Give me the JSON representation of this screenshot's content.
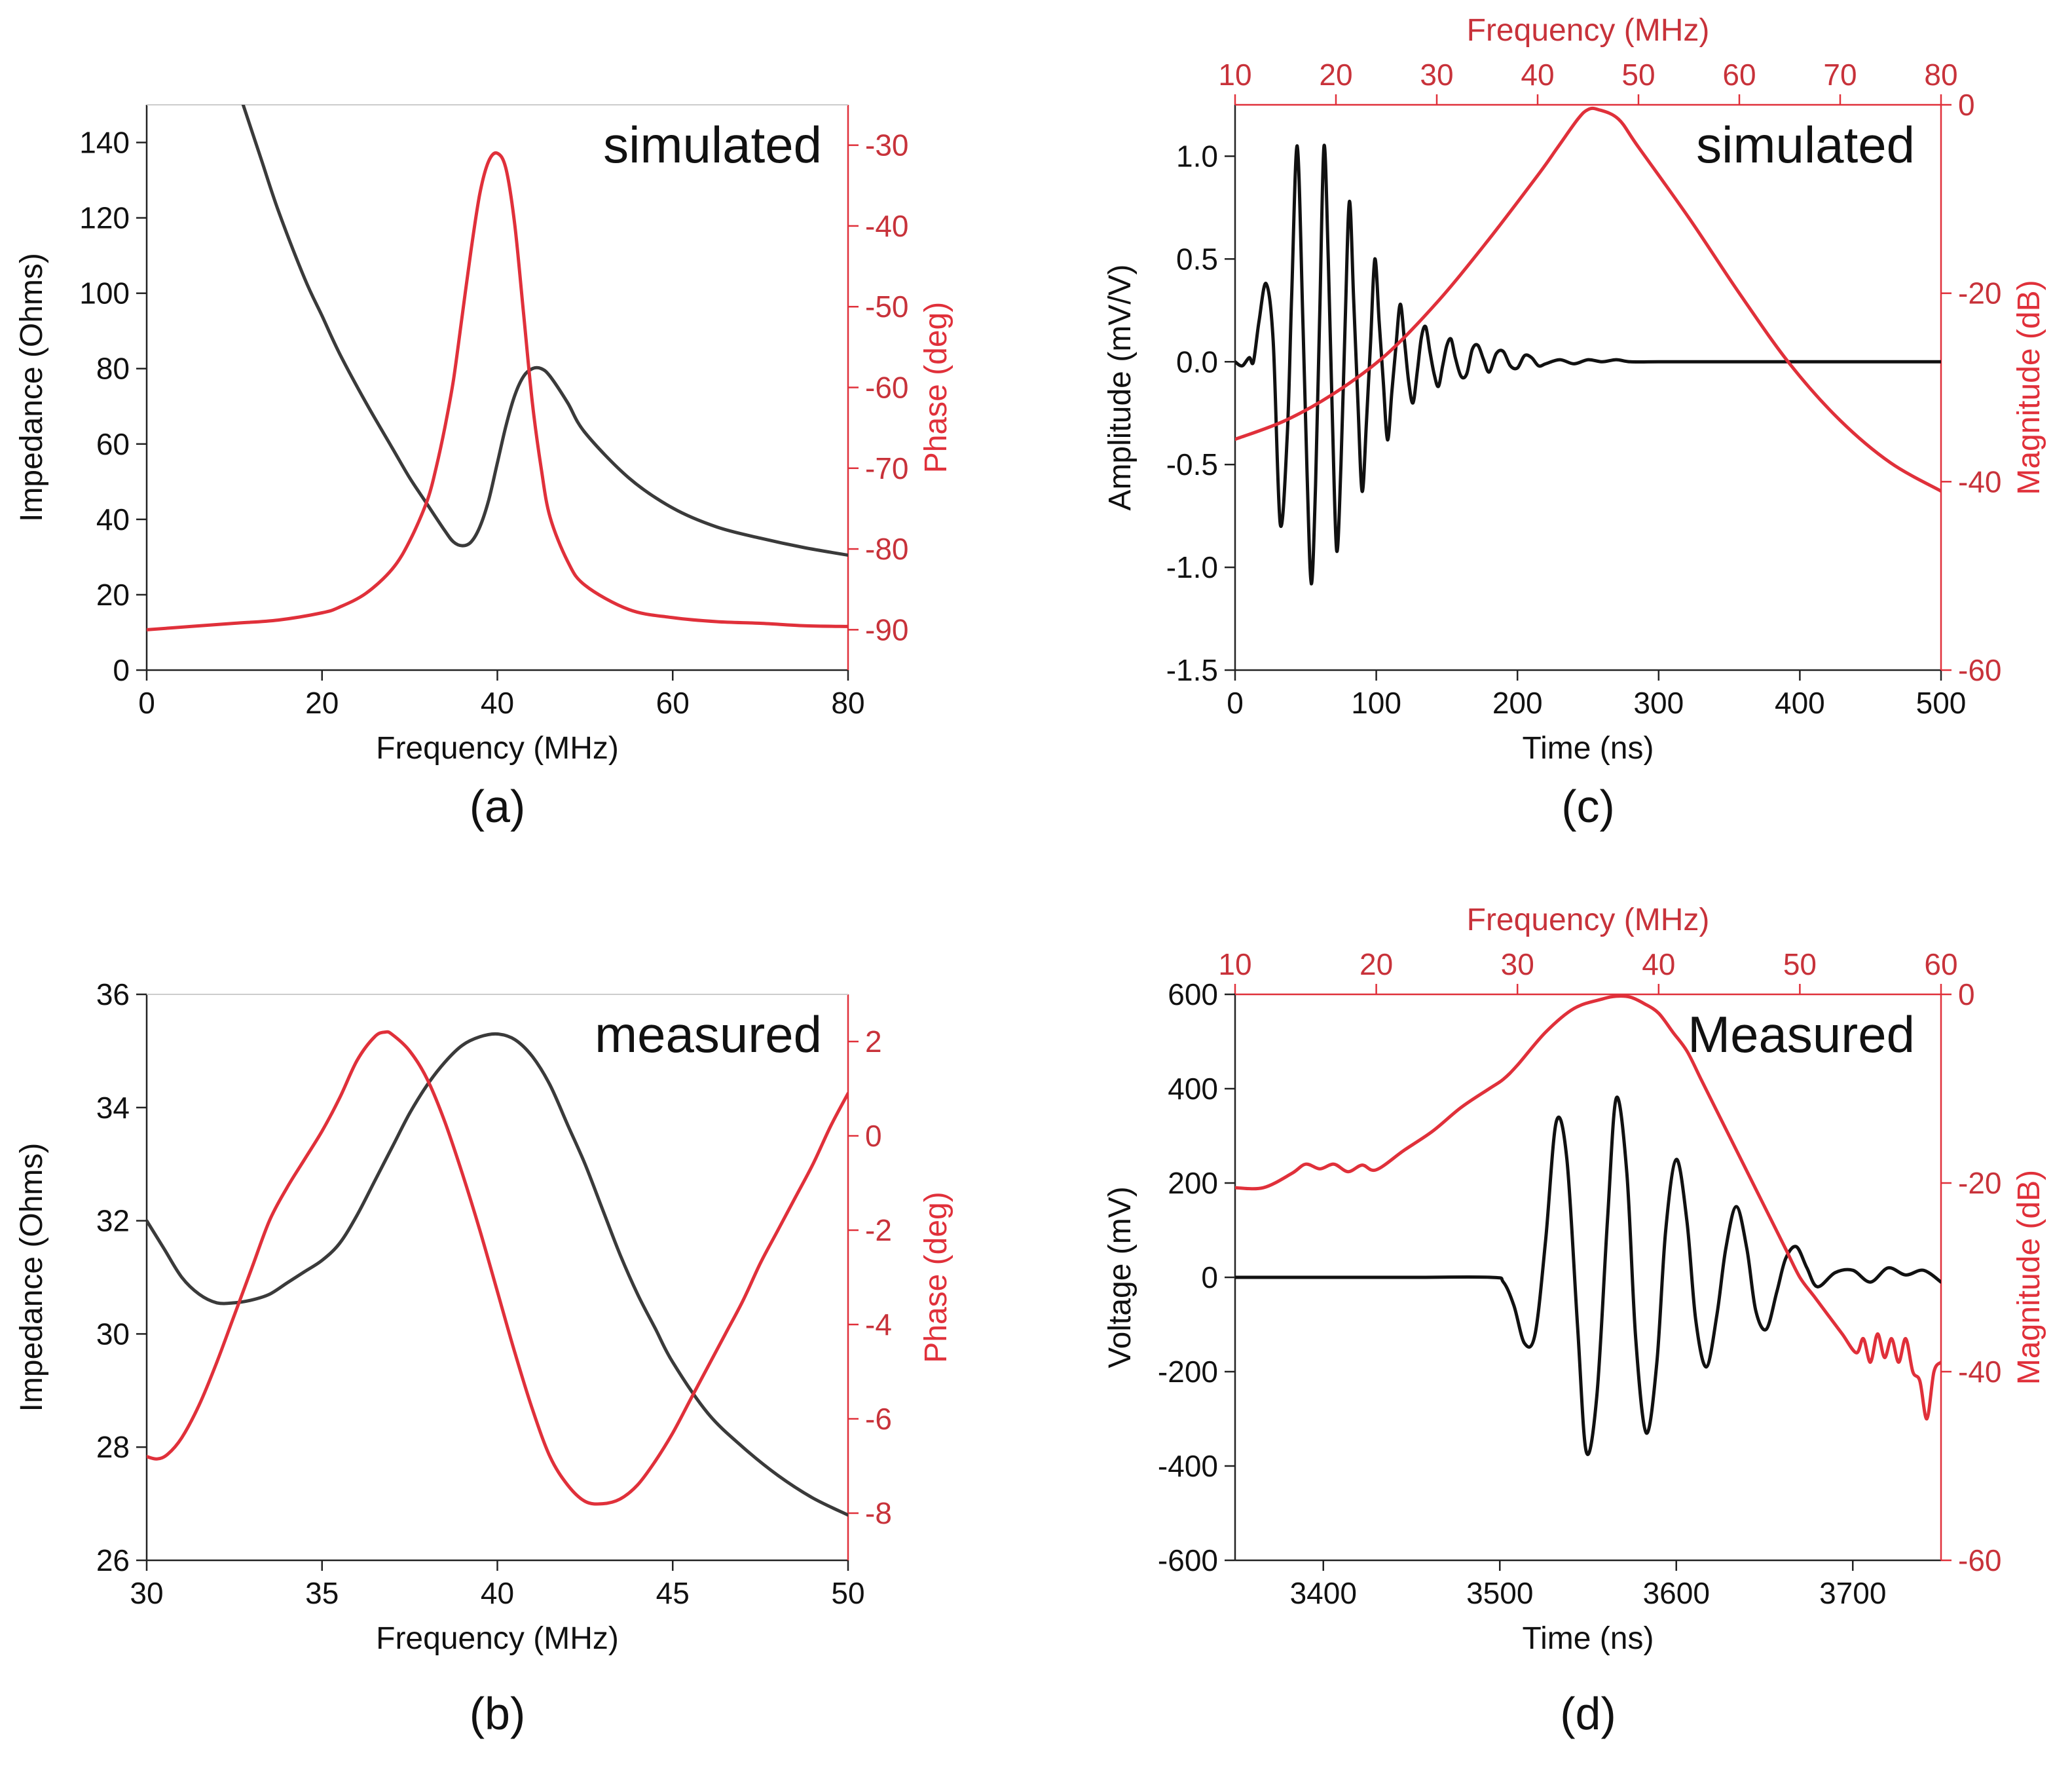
{
  "colors": {
    "black": "#3a3a3a",
    "black_strong": "#111111",
    "red": "#e0303a",
    "red_text": "#c8323a",
    "axis": "#222222"
  },
  "chart_data": [
    {
      "id": "a",
      "type": "line",
      "panel_label": "(a)",
      "annotation": "simulated",
      "xlabel": "Frequency (MHz)",
      "ylabel_left": "Impedance (Ohms)",
      "ylabel_right": "Phase (deg)",
      "xlim": [
        0,
        80
      ],
      "ylim_left": [
        0,
        150
      ],
      "ylim_right": [
        -95,
        -25
      ],
      "xticks": [
        0,
        20,
        40,
        60,
        80
      ],
      "xtick_labels": [
        "0",
        "20",
        "40",
        "60",
        "80"
      ],
      "yticks_left": [
        0,
        20,
        40,
        60,
        80,
        100,
        120,
        140
      ],
      "ytick_labels_left": [
        "0",
        "20",
        "40",
        "60",
        "80",
        "100",
        "120",
        "140"
      ],
      "yticks_right": [
        -90,
        -80,
        -70,
        -60,
        -50,
        -40,
        -30
      ],
      "ytick_labels_right": [
        "-90",
        "-80",
        "-70",
        "-60",
        "-50",
        "-40",
        "-30"
      ],
      "series": [
        {
          "name": "Impedance",
          "axis": "left",
          "color": "black",
          "x": [
            11,
            13,
            15,
            18,
            20,
            22,
            25,
            28,
            30,
            32,
            34,
            35,
            36,
            37,
            38,
            39,
            40,
            41,
            42,
            43,
            44,
            45,
            46,
            48,
            50,
            55,
            60,
            65,
            70,
            75,
            80
          ],
          "y": [
            150,
            136,
            122,
            104,
            94,
            84,
            71,
            59,
            51,
            44,
            37,
            34,
            33,
            34,
            38,
            45,
            55,
            65,
            73,
            78,
            80,
            80,
            78,
            71,
            63,
            51,
            43,
            38,
            35,
            32.5,
            30.5
          ]
        },
        {
          "name": "Phase",
          "axis": "right",
          "color": "red",
          "x": [
            0,
            5,
            10,
            15,
            20,
            22,
            25,
            28,
            30,
            32,
            33,
            34,
            35,
            36,
            37,
            38,
            39,
            40,
            41,
            42,
            43,
            44,
            45,
            46,
            48,
            50,
            55,
            60,
            65,
            70,
            75,
            80
          ],
          "y": [
            -90,
            -89.6,
            -89.2,
            -88.8,
            -87.9,
            -87.2,
            -85.5,
            -82.5,
            -79,
            -74,
            -70,
            -65,
            -59,
            -51,
            -43,
            -36,
            -32,
            -31,
            -33,
            -40,
            -51,
            -62,
            -70,
            -76,
            -81.5,
            -84.5,
            -87.5,
            -88.5,
            -89,
            -89.2,
            -89.5,
            -89.6
          ]
        }
      ]
    },
    {
      "id": "b",
      "type": "line",
      "panel_label": "(b)",
      "annotation": "measured",
      "xlabel": "Frequency (MHz)",
      "ylabel_left": "Impedance (Ohms)",
      "ylabel_right": "Phase (deg)",
      "xlim": [
        30,
        50
      ],
      "ylim_left": [
        26,
        36
      ],
      "ylim_right": [
        -9,
        3
      ],
      "xticks": [
        30,
        35,
        40,
        45,
        50
      ],
      "xtick_labels": [
        "30",
        "35",
        "40",
        "45",
        "50"
      ],
      "yticks_left": [
        26,
        28,
        30,
        32,
        34,
        36
      ],
      "ytick_labels_left": [
        "26",
        "28",
        "30",
        "32",
        "34",
        "36"
      ],
      "yticks_right": [
        -8,
        -6,
        -4,
        -2,
        0,
        2
      ],
      "ytick_labels_right": [
        "-8",
        "-6",
        "-4",
        "-2",
        "0",
        "2"
      ],
      "series": [
        {
          "name": "Impedance",
          "axis": "left",
          "color": "black",
          "x": [
            30,
            30.5,
            31,
            31.5,
            32,
            32.5,
            33,
            33.5,
            34,
            34.5,
            35,
            35.5,
            36,
            36.5,
            37,
            37.5,
            38,
            38.5,
            39,
            39.5,
            40,
            40.5,
            41,
            41.5,
            42,
            42.5,
            43,
            43.5,
            44,
            44.5,
            45,
            46,
            47,
            48,
            49,
            50
          ],
          "y": [
            32,
            31.5,
            31,
            30.7,
            30.55,
            30.55,
            30.6,
            30.7,
            30.9,
            31.1,
            31.3,
            31.6,
            32.1,
            32.7,
            33.3,
            33.9,
            34.4,
            34.8,
            35.1,
            35.25,
            35.3,
            35.2,
            34.9,
            34.4,
            33.7,
            33.0,
            32.2,
            31.4,
            30.7,
            30.1,
            29.5,
            28.6,
            28.0,
            27.5,
            27.1,
            26.8
          ]
        },
        {
          "name": "Phase",
          "axis": "right",
          "color": "red",
          "x": [
            30,
            30.3,
            30.6,
            31,
            31.5,
            32,
            32.5,
            33,
            33.5,
            34,
            34.5,
            35,
            35.5,
            36,
            36.5,
            36.8,
            37,
            37.5,
            38,
            38.5,
            39,
            39.5,
            40,
            40.5,
            41,
            41.5,
            42,
            42.5,
            43,
            43.5,
            44,
            44.5,
            45,
            45.5,
            46,
            46.5,
            47,
            47.5,
            48,
            48.5,
            49,
            49.5,
            50
          ],
          "y": [
            -6.8,
            -6.85,
            -6.75,
            -6.4,
            -5.7,
            -4.8,
            -3.8,
            -2.8,
            -1.8,
            -1.1,
            -0.5,
            0.1,
            0.8,
            1.6,
            2.1,
            2.2,
            2.15,
            1.8,
            1.2,
            0.3,
            -0.8,
            -2.0,
            -3.3,
            -4.6,
            -5.8,
            -6.8,
            -7.4,
            -7.75,
            -7.8,
            -7.7,
            -7.4,
            -6.9,
            -6.3,
            -5.6,
            -4.9,
            -4.2,
            -3.5,
            -2.7,
            -2.0,
            -1.3,
            -0.6,
            0.2,
            0.9
          ]
        }
      ]
    },
    {
      "id": "c",
      "type": "line",
      "panel_label": "(c)",
      "annotation": "simulated",
      "xlabel": "Time (ns)",
      "xlabel_top": "Frequency (MHz)",
      "ylabel_left": "Amplitude (mV/V)",
      "ylabel_right": "Magnitude (dB)",
      "xlim": [
        0,
        500
      ],
      "xlim_top": [
        10,
        80
      ],
      "ylim_left": [
        -1.5,
        1.25
      ],
      "ylim_right": [
        -60,
        0
      ],
      "xticks": [
        0,
        100,
        200,
        300,
        400,
        500
      ],
      "xtick_labels": [
        "0",
        "100",
        "200",
        "300",
        "400",
        "500"
      ],
      "xticks_top": [
        10,
        20,
        30,
        40,
        50,
        60,
        70,
        80
      ],
      "xtick_labels_top": [
        "10",
        "20",
        "30",
        "40",
        "50",
        "60",
        "70",
        "80"
      ],
      "yticks_left": [
        -1.5,
        -1.0,
        -0.5,
        0.0,
        0.5,
        1.0
      ],
      "ytick_labels_left": [
        "-1.5",
        "-1.0",
        "-0.5",
        "0.0",
        "0.5",
        "1.0"
      ],
      "yticks_right": [
        -60,
        -40,
        -20,
        0
      ],
      "ytick_labels_right": [
        "-60",
        "-40",
        "-20",
        "0"
      ],
      "series": [
        {
          "name": "Time-domain pulse",
          "axis": "left",
          "xaxis": "bottom",
          "color": "black",
          "x": [
            0,
            5,
            10,
            13,
            17,
            22,
            27,
            32,
            37,
            40,
            44,
            48,
            51,
            54,
            57,
            60,
            63,
            66,
            69,
            72,
            75,
            78,
            81,
            84,
            87,
            90,
            93,
            96,
            99,
            102,
            105,
            108,
            111,
            114,
            117,
            120,
            123,
            126,
            129,
            132,
            135,
            138,
            141,
            144,
            147,
            150,
            153,
            156,
            160,
            164,
            168,
            172,
            176,
            180,
            185,
            190,
            195,
            200,
            205,
            210,
            215,
            220,
            230,
            240,
            250,
            260,
            270,
            280,
            300,
            350,
            400,
            450,
            500
          ],
          "y": [
            0,
            -0.02,
            0.02,
            0,
            0.2,
            0.38,
            0.1,
            -0.79,
            -0.35,
            0.3,
            1.05,
            0.2,
            -0.55,
            -1.08,
            -0.6,
            0.25,
            1.05,
            0.5,
            -0.3,
            -0.92,
            -0.5,
            0.2,
            0.78,
            0.3,
            -0.2,
            -0.63,
            -0.3,
            0.1,
            0.5,
            0.2,
            -0.1,
            -0.38,
            -0.15,
            0.08,
            0.28,
            0.1,
            -0.1,
            -0.2,
            -0.05,
            0.12,
            0.17,
            0.05,
            -0.06,
            -0.12,
            -0.02,
            0.08,
            0.11,
            0.02,
            -0.07,
            -0.06,
            0.06,
            0.08,
            0.01,
            -0.05,
            0.04,
            0.05,
            -0.02,
            -0.03,
            0.03,
            0.02,
            -0.02,
            -0.01,
            0.01,
            -0.01,
            0.01,
            0,
            0.01,
            0,
            0,
            0,
            0,
            0,
            0
          ]
        },
        {
          "name": "Spectrum",
          "axis": "right",
          "xaxis": "top",
          "color": "red",
          "x": [
            10,
            15,
            20,
            25,
            30,
            35,
            40,
            42,
            44,
            45,
            46,
            48,
            50,
            55,
            60,
            65,
            70,
            75,
            80
          ],
          "y": [
            -35.5,
            -33.5,
            -30.5,
            -26.5,
            -21,
            -14.5,
            -7.5,
            -4.5,
            -1.5,
            -0.5,
            -0.5,
            -1.5,
            -4.5,
            -12,
            -20,
            -27.5,
            -33.5,
            -38,
            -41
          ]
        }
      ]
    },
    {
      "id": "d",
      "type": "line",
      "panel_label": "(d)",
      "annotation": "Measured",
      "xlabel": "Time (ns)",
      "xlabel_top": "Frequency (MHz)",
      "ylabel_left": "Voltage (mV)",
      "ylabel_right": "Magnitude (dB)",
      "xlim": [
        3350,
        3750
      ],
      "xlim_top": [
        10,
        60
      ],
      "ylim_left": [
        -600,
        600
      ],
      "ylim_right": [
        -60,
        0
      ],
      "xticks": [
        3400,
        3500,
        3600,
        3700
      ],
      "xtick_labels": [
        "3400",
        "3500",
        "3600",
        "3700"
      ],
      "xticks_top": [
        10,
        20,
        30,
        40,
        50,
        60
      ],
      "xtick_labels_top": [
        "10",
        "20",
        "30",
        "40",
        "50",
        "60"
      ],
      "yticks_left": [
        -600,
        -400,
        -200,
        0,
        200,
        400,
        600
      ],
      "ytick_labels_left": [
        "-600",
        "-400",
        "-200",
        "0",
        "200",
        "400",
        "600"
      ],
      "yticks_right": [
        -60,
        -40,
        -20,
        0
      ],
      "ytick_labels_right": [
        "-60",
        "-40",
        "-20",
        "0"
      ],
      "series": [
        {
          "name": "Received signal",
          "axis": "left",
          "xaxis": "bottom",
          "color": "black",
          "x": [
            3350,
            3400,
            3450,
            3495,
            3502,
            3508,
            3514,
            3520,
            3526,
            3532,
            3538,
            3544,
            3549,
            3555,
            3561,
            3566,
            3572,
            3577,
            3583,
            3589,
            3594,
            3600,
            3606,
            3611,
            3617,
            3623,
            3628,
            3634,
            3640,
            3645,
            3651,
            3657,
            3662,
            3668,
            3674,
            3680,
            3690,
            3700,
            3710,
            3720,
            3730,
            3740,
            3750
          ],
          "y": [
            0,
            0,
            0,
            0,
            -10,
            -60,
            -140,
            -120,
            80,
            330,
            250,
            -100,
            -370,
            -250,
            120,
            380,
            220,
            -130,
            -330,
            -180,
            100,
            250,
            120,
            -90,
            -190,
            -80,
            60,
            150,
            60,
            -70,
            -110,
            -30,
            40,
            65,
            20,
            -20,
            10,
            15,
            -10,
            20,
            5,
            15,
            -10
          ]
        },
        {
          "name": "Spectrum",
          "axis": "right",
          "xaxis": "top",
          "color": "red",
          "x": [
            10,
            12,
            14,
            15,
            16,
            17,
            18,
            19,
            20,
            22,
            24,
            26,
            28,
            29,
            30,
            32,
            34,
            36,
            37,
            38,
            39,
            40,
            41,
            42,
            43,
            44,
            45,
            46,
            47,
            48,
            49,
            50,
            51,
            52,
            53,
            54,
            54.5,
            55,
            55.5,
            56,
            56.5,
            57,
            57.5,
            58,
            58.5,
            59,
            59.5,
            60
          ],
          "y": [
            -20.5,
            -20.5,
            -19,
            -18,
            -18.5,
            -18,
            -18.8,
            -18.1,
            -18.6,
            -16.5,
            -14.5,
            -12,
            -10,
            -9,
            -7.5,
            -4,
            -1.5,
            -0.5,
            -0.2,
            -0.3,
            -1,
            -2,
            -4,
            -6,
            -9,
            -12,
            -15,
            -18,
            -21,
            -24,
            -27,
            -30,
            -32,
            -34,
            -36,
            -38,
            -36.5,
            -39,
            -36,
            -38.5,
            -36.5,
            -39,
            -36.5,
            -40,
            -41,
            -45,
            -40,
            -39
          ]
        }
      ]
    }
  ]
}
